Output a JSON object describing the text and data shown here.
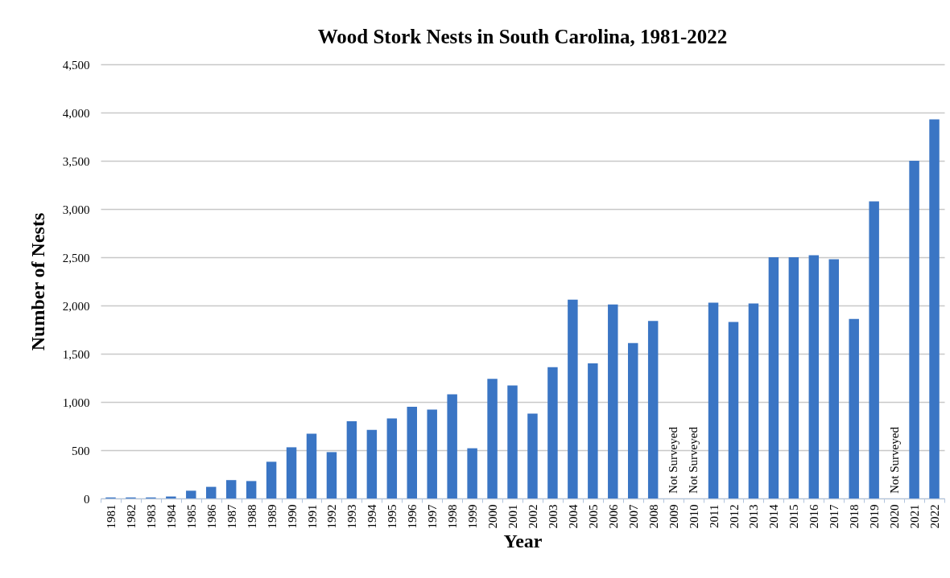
{
  "chart_data": {
    "type": "bar",
    "title": "Wood Stork Nests in South Carolina, 1981-2022",
    "xlabel": "Year",
    "ylabel": "Number of Nests",
    "categories": [
      "1981",
      "1982",
      "1983",
      "1984",
      "1985",
      "1986",
      "1987",
      "1988",
      "1989",
      "1990",
      "1991",
      "1992",
      "1993",
      "1994",
      "1995",
      "1996",
      "1997",
      "1998",
      "1999",
      "2000",
      "2001",
      "2002",
      "2003",
      "2004",
      "2005",
      "2006",
      "2007",
      "2008",
      "2009",
      "2010",
      "2011",
      "2012",
      "2013",
      "2014",
      "2015",
      "2016",
      "2017",
      "2018",
      "2019",
      "2020",
      "2021",
      "2022"
    ],
    "values": [
      10,
      10,
      10,
      20,
      80,
      120,
      190,
      180,
      380,
      530,
      670,
      480,
      800,
      710,
      830,
      950,
      920,
      1080,
      520,
      1240,
      1170,
      880,
      1360,
      2060,
      1400,
      2010,
      1610,
      1840,
      null,
      null,
      2030,
      1830,
      2020,
      2500,
      2500,
      2520,
      2480,
      1860,
      3080,
      null,
      3500,
      3930
    ],
    "color": "#3a75c4",
    "ylim": [
      0,
      4500
    ],
    "yticks": [
      0,
      {
        "value": 500,
        "label": "500"
      },
      {
        "value": 1000,
        "label": "1,000"
      },
      {
        "value": 1500,
        "label": "1,500"
      },
      {
        "value": 2000,
        "label": "2,000"
      },
      {
        "value": 2500,
        "label": "2,500"
      },
      {
        "value": 3000,
        "label": "3,000"
      },
      {
        "value": 3500,
        "label": "3,500"
      },
      {
        "value": 4000,
        "label": "4,000"
      },
      {
        "value": 4500,
        "label": "4,500"
      }
    ],
    "grid": "y",
    "annotations": [
      "Not Surveyed",
      "Not Surveyed",
      "Not Surveyed"
    ]
  }
}
